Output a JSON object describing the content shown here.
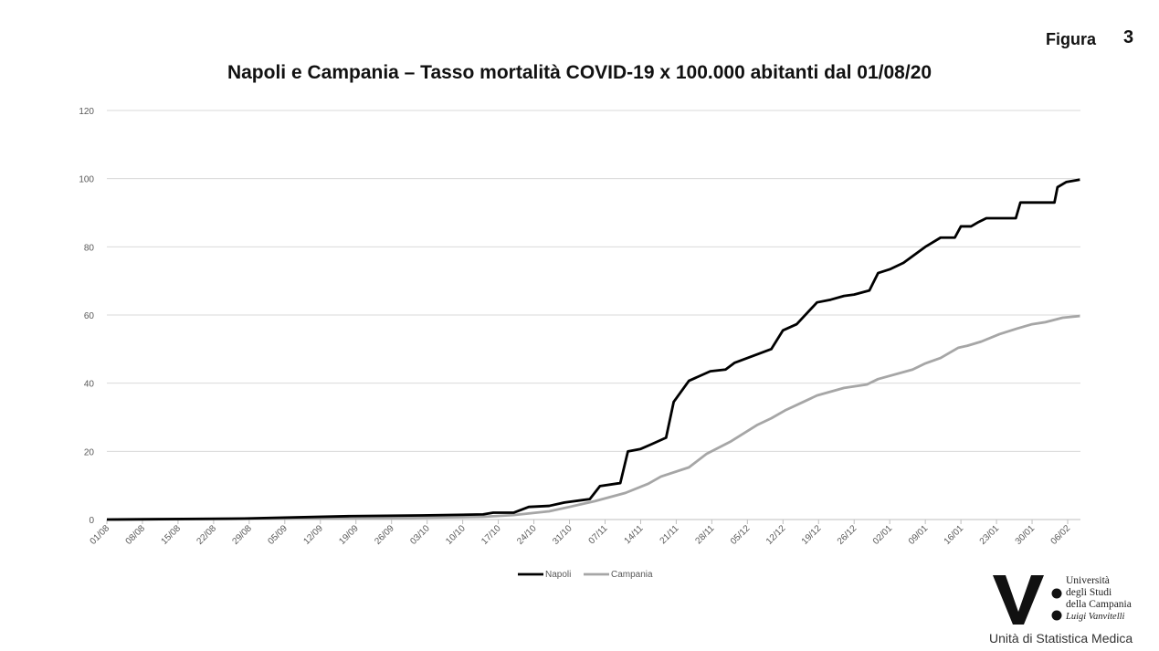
{
  "figure": {
    "label": "Figura",
    "number": "3"
  },
  "chart_data": {
    "type": "line",
    "title": "Napoli e Campania – Tasso mortalità COVID-19 x 100.000 abitanti dal 01/08/20",
    "xlabel": "",
    "ylabel": "",
    "ylim": [
      0,
      120
    ],
    "yticks": [
      0,
      20,
      40,
      60,
      80,
      100,
      120
    ],
    "x_unit": "days since 01/08/20",
    "xlim": [
      0,
      191.4
    ],
    "xtick_labels": [
      "01/08",
      "08/08",
      "15/08",
      "22/08",
      "29/08",
      "05/09",
      "12/09",
      "19/09",
      "26/09",
      "03/10",
      "10/10",
      "17/10",
      "24/10",
      "31/10",
      "07/11",
      "14/11",
      "21/11",
      "28/11",
      "05/12",
      "12/12",
      "19/12",
      "26/12",
      "02/01",
      "09/01",
      "16/01",
      "23/01",
      "30/01",
      "06/02"
    ],
    "xtick_step_days": 7,
    "grid": true,
    "legend_position": "bottom",
    "series": [
      {
        "name": "Napoli",
        "color": "#000000",
        "points": [
          [
            0,
            0
          ],
          [
            27,
            0.3
          ],
          [
            48,
            1
          ],
          [
            62,
            1.2
          ],
          [
            74,
            1.5
          ],
          [
            76,
            2
          ],
          [
            80,
            2
          ],
          [
            83,
            3.7
          ],
          [
            87,
            4
          ],
          [
            90,
            5
          ],
          [
            95,
            6
          ],
          [
            97,
            9.8
          ],
          [
            101,
            10.7
          ],
          [
            102.5,
            20
          ],
          [
            105,
            20.7
          ],
          [
            107,
            22
          ],
          [
            110,
            24
          ],
          [
            111.5,
            34.5
          ],
          [
            114.5,
            40.7
          ],
          [
            118.7,
            43.5
          ],
          [
            121.7,
            44
          ],
          [
            123.5,
            46
          ],
          [
            130.7,
            50
          ],
          [
            133,
            55.5
          ],
          [
            135.7,
            57.3
          ],
          [
            139.7,
            63.7
          ],
          [
            142.4,
            64.5
          ],
          [
            145,
            65.6
          ],
          [
            147,
            66
          ],
          [
            150,
            67.2
          ],
          [
            151.7,
            72.3
          ],
          [
            154,
            73.4
          ],
          [
            156.7,
            75.3
          ],
          [
            161,
            80
          ],
          [
            164,
            82.7
          ],
          [
            166.8,
            82.7
          ],
          [
            168,
            86
          ],
          [
            170,
            86
          ],
          [
            171.5,
            87.3
          ],
          [
            173,
            88.4
          ],
          [
            178.8,
            88.4
          ],
          [
            179.7,
            93
          ],
          [
            186.4,
            93
          ],
          [
            187,
            97.5
          ],
          [
            188.7,
            99
          ],
          [
            191.4,
            99.7
          ]
        ]
      },
      {
        "name": "Campania",
        "color": "#a6a6a6",
        "points": [
          [
            0,
            0
          ],
          [
            27,
            0.2
          ],
          [
            60,
            0.5
          ],
          [
            74,
            0.8
          ],
          [
            80,
            1.3
          ],
          [
            87,
            2.4
          ],
          [
            91,
            3.7
          ],
          [
            96,
            5.4
          ],
          [
            98,
            6.2
          ],
          [
            102,
            7.8
          ],
          [
            106.5,
            10.5
          ],
          [
            109,
            12.6
          ],
          [
            114.5,
            15.3
          ],
          [
            118,
            19.3
          ],
          [
            122.6,
            22.8
          ],
          [
            128,
            27.8
          ],
          [
            130.7,
            29.7
          ],
          [
            133.4,
            32
          ],
          [
            137,
            34.5
          ],
          [
            139.7,
            36.4
          ],
          [
            145,
            38.6
          ],
          [
            149.5,
            39.6
          ],
          [
            151.7,
            41.2
          ],
          [
            158.5,
            44
          ],
          [
            161,
            45.8
          ],
          [
            164,
            47.4
          ],
          [
            167.5,
            50.4
          ],
          [
            169.3,
            51
          ],
          [
            172,
            52.2
          ],
          [
            175.6,
            54.4
          ],
          [
            179,
            56
          ],
          [
            182,
            57.3
          ],
          [
            184.6,
            57.9
          ],
          [
            188,
            59.2
          ],
          [
            191.4,
            59.7
          ]
        ]
      }
    ]
  },
  "logo": {
    "lines": [
      "Università",
      "degli Studi",
      "della Campania",
      "Luigi Vanvitelli"
    ]
  },
  "footer": "Unità di Statistica Medica"
}
